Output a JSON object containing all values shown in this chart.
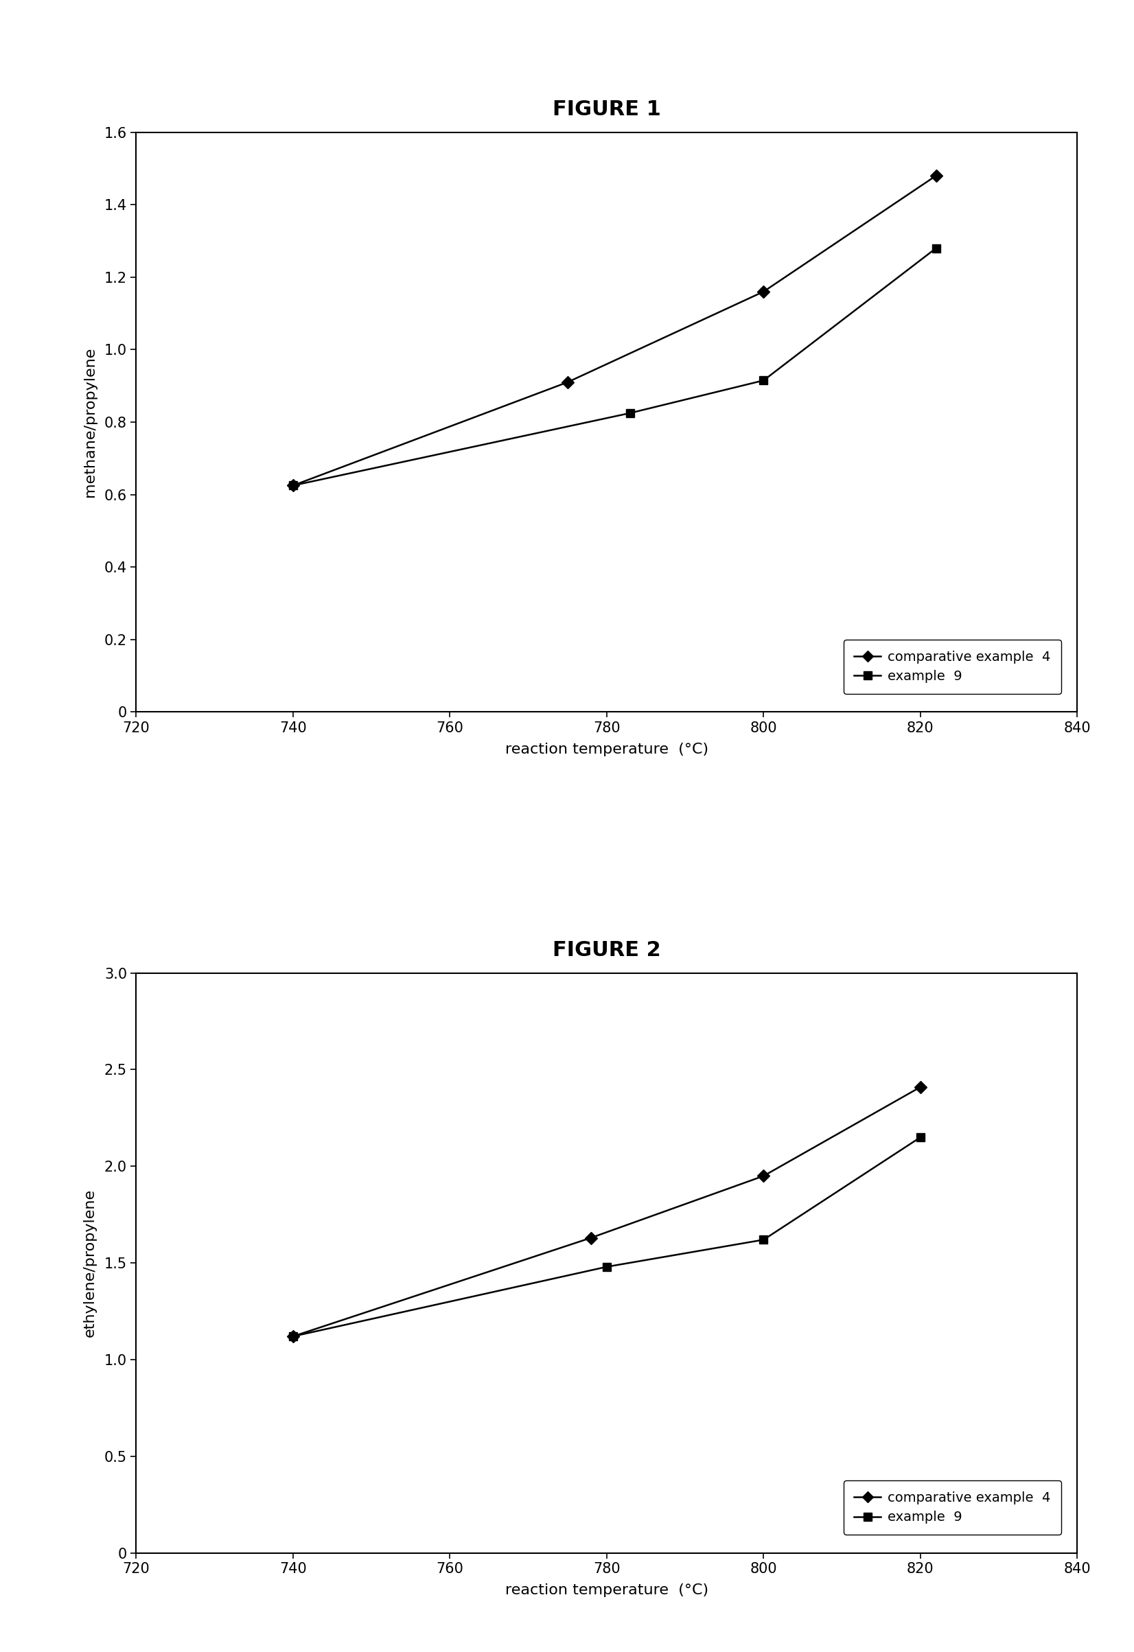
{
  "fig1": {
    "title": "FIGURE 1",
    "xlabel": "reaction temperature  (°C)",
    "ylabel": "methane/propylene",
    "xlim": [
      720,
      840
    ],
    "ylim": [
      0,
      1.6
    ],
    "xticks": [
      720,
      740,
      760,
      780,
      800,
      820,
      840
    ],
    "yticks": [
      0,
      0.2,
      0.4,
      0.6,
      0.8,
      1.0,
      1.2,
      1.4,
      1.6
    ],
    "ytick_labels": [
      "0",
      "0.2",
      "0.4",
      "0.6",
      "0.8",
      "1.0",
      "1.2",
      "1.4",
      "1.6"
    ],
    "series": [
      {
        "label": "comparative example  4",
        "x": [
          740,
          775,
          800,
          822
        ],
        "y": [
          0.625,
          0.91,
          1.16,
          1.48
        ],
        "marker": "D",
        "color": "#000000",
        "markersize": 9
      },
      {
        "label": "example  9",
        "x": [
          740,
          783,
          800,
          822
        ],
        "y": [
          0.625,
          0.825,
          0.915,
          1.28
        ],
        "marker": "s",
        "color": "#000000",
        "markersize": 9
      }
    ]
  },
  "fig2": {
    "title": "FIGURE 2",
    "xlabel": "reaction temperature  (°C)",
    "ylabel": "ethylene/propylene",
    "xlim": [
      720,
      840
    ],
    "ylim": [
      0,
      3.0
    ],
    "xticks": [
      720,
      740,
      760,
      780,
      800,
      820,
      840
    ],
    "yticks": [
      0,
      0.5,
      1.0,
      1.5,
      2.0,
      2.5,
      3.0
    ],
    "ytick_labels": [
      "0",
      "0.5",
      "1.0",
      "1.5",
      "2.0",
      "2.5",
      "3.0"
    ],
    "series": [
      {
        "label": "comparative example  4",
        "x": [
          740,
          778,
          800,
          820
        ],
        "y": [
          1.12,
          1.63,
          1.95,
          2.41
        ],
        "marker": "D",
        "color": "#000000",
        "markersize": 9
      },
      {
        "label": "example  9",
        "x": [
          740,
          780,
          800,
          820
        ],
        "y": [
          1.12,
          1.48,
          1.62,
          2.15
        ],
        "marker": "s",
        "color": "#000000",
        "markersize": 9
      }
    ]
  },
  "background_color": "#ffffff",
  "line_color": "#000000",
  "title_fontsize": 22,
  "axis_label_fontsize": 16,
  "tick_fontsize": 15,
  "legend_fontsize": 14
}
